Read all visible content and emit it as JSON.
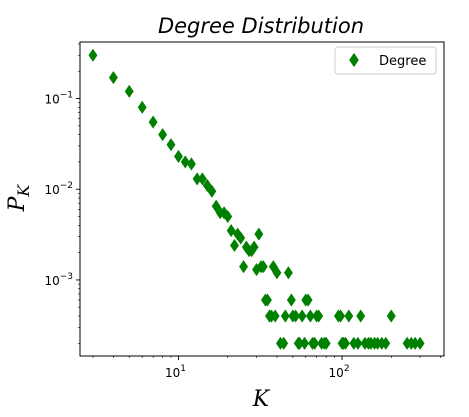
{
  "chart_data": {
    "type": "scatter",
    "title": "Degree Distribution",
    "xlabel": "K",
    "ylabel": "P_K",
    "xscale": "log",
    "yscale": "log",
    "xlim": [
      2.5,
      420
    ],
    "ylim": [
      0.000145,
      0.42
    ],
    "grid": false,
    "legend_position": "top-right",
    "marker": "thin-diamond",
    "x_ticks": [
      {
        "value": 10,
        "base": "10",
        "exp": "1"
      },
      {
        "value": 100,
        "base": "10",
        "exp": "2"
      }
    ],
    "y_ticks": [
      {
        "value": 0.001,
        "base": "10",
        "exp": "−3"
      },
      {
        "value": 0.01,
        "base": "10",
        "exp": "−2"
      },
      {
        "value": 0.1,
        "base": "10",
        "exp": "−1"
      }
    ],
    "series": [
      {
        "name": "Degree",
        "color": "#008000",
        "x": [
          3,
          4,
          5,
          6,
          7,
          8,
          9,
          10,
          11,
          12,
          13,
          14,
          15,
          16,
          17,
          18,
          19,
          20,
          21,
          22,
          23,
          24,
          25,
          26,
          27,
          28,
          29,
          30,
          31,
          32,
          33,
          34,
          35,
          36,
          37,
          38,
          39,
          40,
          42,
          44,
          45,
          47,
          49,
          50,
          52,
          54,
          55,
          57,
          59,
          60,
          62,
          64,
          66,
          68,
          70,
          72,
          75,
          78,
          80,
          95,
          98,
          100,
          102,
          105,
          110,
          118,
          125,
          130,
          138,
          145,
          150,
          158,
          165,
          175,
          185,
          200,
          250,
          265,
          280,
          300
        ],
        "y": [
          0.3,
          0.17,
          0.12,
          0.08,
          0.055,
          0.04,
          0.031,
          0.023,
          0.02,
          0.019,
          0.013,
          0.013,
          0.011,
          0.0095,
          0.0065,
          0.0055,
          0.0055,
          0.005,
          0.0035,
          0.0024,
          0.0032,
          0.0029,
          0.0014,
          0.0023,
          0.0021,
          0.0021,
          0.0023,
          0.0013,
          0.0032,
          0.0014,
          0.0014,
          0.0006,
          0.0006,
          0.0004,
          0.0004,
          0.0014,
          0.0004,
          0.0012,
          0.0002,
          0.0002,
          0.0004,
          0.0012,
          0.0006,
          0.0004,
          0.0004,
          0.0002,
          0.0002,
          0.0004,
          0.0002,
          0.0006,
          0.0006,
          0.0004,
          0.0002,
          0.0002,
          0.0004,
          0.0004,
          0.0002,
          0.0002,
          0.0002,
          0.0004,
          0.0004,
          0.0002,
          0.0002,
          0.0002,
          0.0004,
          0.0002,
          0.0002,
          0.0004,
          0.0002,
          0.0002,
          0.0002,
          0.0002,
          0.0002,
          0.0002,
          0.0002,
          0.0004,
          0.0002,
          0.0002,
          0.0002,
          0.0002
        ]
      }
    ]
  }
}
